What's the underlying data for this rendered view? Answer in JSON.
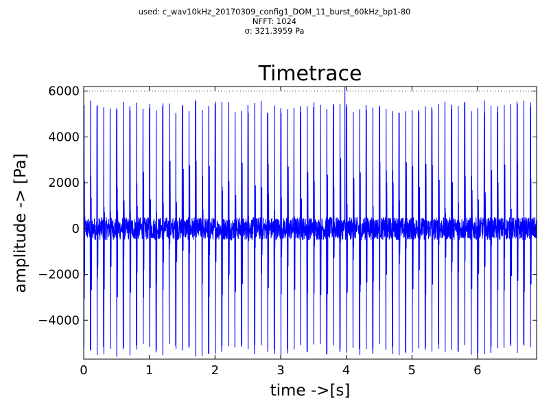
{
  "header": {
    "used": "used: c_wav10kHz_20170309_config1_DOM_11_burst_60kHz_bp1-80",
    "nfft": "NFFT: 1024",
    "sigma": "σ: 321.3959 Pa"
  },
  "chart_data": {
    "type": "line",
    "title": "Timetrace",
    "xlabel": "time ->[s]",
    "ylabel": "amplitude -> [Pa]",
    "xlim": [
      0,
      6.9
    ],
    "ylim": [
      -5700,
      6200
    ],
    "xticks": [
      0,
      1,
      2,
      3,
      4,
      5,
      6
    ],
    "xtick_labels": [
      "0",
      "1",
      "2",
      "3",
      "4",
      "5",
      "6"
    ],
    "yticks": [
      -4000,
      -2000,
      0,
      2000,
      4000,
      6000
    ],
    "ytick_labels": [
      "−4000",
      "−2000",
      "0",
      "2000",
      "4000",
      "6000"
    ],
    "reference_line": {
      "y": 6000,
      "style": "dotted"
    },
    "series": [
      {
        "color": "#0000ff",
        "signal": {
          "description": "periodic bursts",
          "burst_period_s": 0.1,
          "burst_peak_pa": 5600,
          "burst_trough_pa": -5600,
          "noise_band_pa": 500,
          "max_peak_pa": 6200,
          "max_peak_time_s": 3.98
        }
      }
    ],
    "grid": false,
    "legend": "none"
  }
}
